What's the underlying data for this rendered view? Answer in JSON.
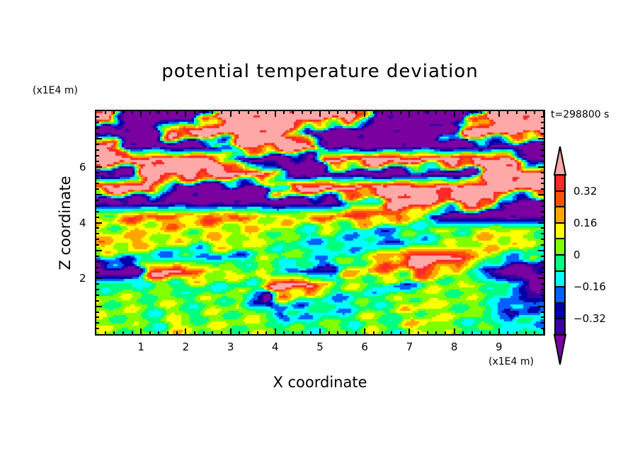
{
  "chart_data": {
    "type": "heatmap",
    "title": "potential temperature deviation",
    "xlabel": "X coordinate",
    "ylabel": "Z coordinate",
    "x_unit": "(x1E4 m)",
    "y_unit": "(x1E4 m)",
    "annotation": "t=298800 s",
    "xlim": [
      0,
      10
    ],
    "ylim": [
      0,
      8
    ],
    "xticks": [
      "1",
      "2",
      "3",
      "4",
      "5",
      "6",
      "7",
      "8",
      "9"
    ],
    "yticks": [
      "2",
      "4",
      "6"
    ],
    "colorbar": {
      "levels": [
        -0.4,
        -0.32,
        -0.24,
        -0.16,
        -0.08,
        0,
        0.08,
        0.16,
        0.24,
        0.32,
        0.4
      ],
      "tick_labels": [
        {
          "value": 0.32,
          "label": "0.32"
        },
        {
          "value": 0.16,
          "label": "0.16"
        },
        {
          "value": 0,
          "label": "0"
        },
        {
          "value": -0.16,
          "label": "−0.16"
        },
        {
          "value": -0.32,
          "label": "−0.32"
        }
      ],
      "colors": [
        "#7a00a0",
        "#3a00a0",
        "#0000a8",
        "#0060ff",
        "#00ffff",
        "#00ff80",
        "#80ff00",
        "#ffff00",
        "#ffa500",
        "#ff5000",
        "#ff2828",
        "#ffa8a8"
      ],
      "extend": "both"
    },
    "grid_x": [
      0.25,
      0.75,
      1.25,
      1.75,
      2.25,
      2.75,
      3.25,
      3.75,
      4.25,
      4.75,
      5.25,
      5.75,
      6.25,
      6.75,
      7.25,
      7.75,
      8.25,
      8.75,
      9.25,
      9.75
    ],
    "grid_z": [
      7.75,
      7.25,
      6.75,
      6.25,
      5.75,
      5.25,
      4.75,
      4.25,
      3.75,
      3.25,
      2.75,
      2.25,
      1.75,
      1.25,
      0.75,
      0.25
    ],
    "values": [
      [
        0.5,
        -0.5,
        -0.5,
        -0.5,
        -0.5,
        0.5,
        0.5,
        0.5,
        0.5,
        0.5,
        0.5,
        0.5,
        -0.5,
        -0.5,
        -0.5,
        -0.5,
        -0.5,
        0.5,
        0.5,
        0.5
      ],
      [
        -0.5,
        -0.5,
        -0.5,
        0.5,
        0.5,
        0.5,
        0.5,
        0.5,
        0.5,
        -0.5,
        -0.5,
        -0.5,
        -0.5,
        -0.5,
        -0.5,
        -0.5,
        0.5,
        0.5,
        0.5,
        0.5
      ],
      [
        0.5,
        -0.5,
        -0.5,
        -0.5,
        -0.5,
        -0.5,
        0.5,
        0.5,
        0.5,
        0.5,
        -0.5,
        -0.5,
        -0.5,
        -0.5,
        -0.5,
        -0.5,
        -0.5,
        -0.5,
        -0.5,
        -0.5
      ],
      [
        0.5,
        0.5,
        0.5,
        0.5,
        0.5,
        0.5,
        -0.5,
        -0.5,
        -0.5,
        -0.5,
        0.5,
        0.5,
        0.5,
        0.5,
        0.5,
        0.5,
        0.5,
        0.5,
        0.5,
        -0.5
      ],
      [
        -0.5,
        -0.5,
        0.5,
        0.5,
        0.5,
        0.5,
        0.5,
        0.5,
        -0.5,
        -0.5,
        -0.5,
        -0.5,
        -0.5,
        -0.5,
        -0.5,
        -0.5,
        -0.5,
        0.5,
        0.5,
        0.5
      ],
      [
        0.5,
        0.5,
        0.5,
        -0.5,
        -0.5,
        -0.5,
        -0.5,
        -0.5,
        0.5,
        0.5,
        0.5,
        0.5,
        0.5,
        0.5,
        0.5,
        0.5,
        0.5,
        0.5,
        0.5,
        0.5
      ],
      [
        -0.5,
        -0.5,
        -0.5,
        -0.5,
        -0.5,
        -0.5,
        -0.5,
        -0.5,
        -0.5,
        -0.5,
        -0.5,
        -0.12,
        -0.04,
        0.5,
        0.5,
        0.28,
        0.5,
        0.5,
        -0.5,
        -0.5
      ],
      [
        0.12,
        0.2,
        0.28,
        0.28,
        0.2,
        0.28,
        0.28,
        0.12,
        0.12,
        0.2,
        0.2,
        0.36,
        0.36,
        0.2,
        0.12,
        -0.5,
        -0.5,
        -0.5,
        -0.5,
        -0.5
      ],
      [
        0.04,
        0.12,
        0.12,
        0.12,
        0.12,
        0.12,
        0.04,
        0.12,
        0.04,
        -0.04,
        0.04,
        -0.12,
        -0.12,
        -0.12,
        -0.04,
        0.04,
        0.04,
        0.12,
        0.04,
        0.04
      ],
      [
        0.2,
        0.2,
        0.12,
        0.04,
        0.04,
        0.12,
        0.12,
        0.04,
        -0.04,
        -0.12,
        -0.12,
        -0.12,
        -0.2,
        -0.2,
        -0.04,
        -0.04,
        0.04,
        0.12,
        0.2,
        0.04
      ],
      [
        -0.12,
        -0.04,
        -0.12,
        -0.2,
        -0.2,
        -0.2,
        -0.12,
        -0.04,
        0.04,
        -0.04,
        -0.12,
        -0.04,
        0.12,
        0.36,
        0.5,
        0.5,
        0.36,
        0.04,
        -0.12,
        -0.12
      ],
      [
        -0.5,
        -0.5,
        0.28,
        0.5,
        0.28,
        0.12,
        0.04,
        0.12,
        -0.2,
        -0.28,
        -0.28,
        0.12,
        0.2,
        0.2,
        0.36,
        0.12,
        0.04,
        -0.36,
        -0.5,
        -0.5
      ],
      [
        -0.04,
        -0.04,
        -0.04,
        -0.04,
        -0.04,
        -0.04,
        -0.04,
        0.12,
        0.5,
        0.5,
        0.04,
        0.04,
        -0.04,
        -0.2,
        -0.04,
        0.04,
        0.04,
        0.04,
        -0.04,
        -0.5
      ],
      [
        0.04,
        0.04,
        0.04,
        0.04,
        -0.04,
        0.04,
        0.04,
        -0.5,
        0.04,
        -0.04,
        -0.12,
        -0.12,
        -0.04,
        0.04,
        0.12,
        0.04,
        0.04,
        -0.04,
        -0.2,
        -0.28
      ],
      [
        0.04,
        0.04,
        -0.04,
        0.04,
        -0.04,
        0.04,
        0.04,
        0.04,
        -0.36,
        -0.04,
        -0.12,
        -0.04,
        0.04,
        -0.04,
        0.12,
        0.04,
        0.04,
        -0.04,
        -0.36,
        -0.12
      ],
      [
        0.04,
        0.04,
        -0.04,
        0.12,
        0.04,
        0.04,
        0.04,
        0.04,
        -0.04,
        -0.04,
        0.04,
        -0.04,
        0.04,
        -0.04,
        0.12,
        0.04,
        -0.04,
        -0.04,
        -0.04,
        -0.12
      ]
    ]
  }
}
